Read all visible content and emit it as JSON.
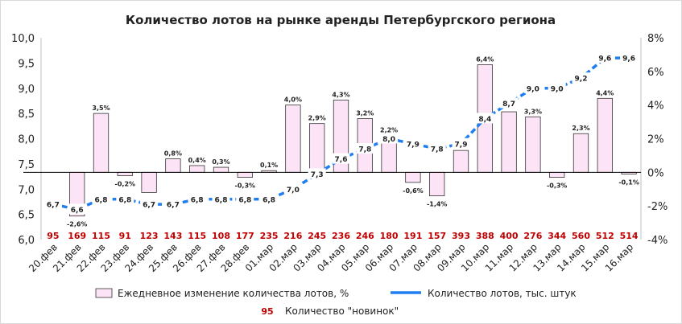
{
  "chart_data": {
    "type": "bar+line",
    "title": "Количество лотов на рынке аренды Петербургского региона",
    "categories": [
      "20.фев",
      "21.фев",
      "22.фев",
      "23.фев",
      "24.фев",
      "25.фев",
      "26.фев",
      "27.фев",
      "28.фев",
      "01.мар",
      "02.мар",
      "03.мар",
      "04.мар",
      "05.мар",
      "06.мар",
      "07.мар",
      "08.мар",
      "09.мар",
      "10.мар",
      "11.мар",
      "12.мар",
      "13.мар",
      "14.мар",
      "15.мар",
      "16.мар"
    ],
    "left_axis": {
      "ylim": [
        6.0,
        10.0
      ],
      "ticks": [
        "6,0",
        "6,5",
        "7,0",
        "7,5",
        "8,0",
        "8,5",
        "9,0",
        "9,5",
        "10,0"
      ]
    },
    "right_axis": {
      "ylim": [
        -4,
        8
      ],
      "ticks": [
        "-4%",
        "-2%",
        "0%",
        "2%",
        "4%",
        "6%",
        "8%"
      ]
    },
    "series": [
      {
        "name": "Ежедневное изменение количества лотов, %",
        "type": "bar",
        "axis": "right",
        "color": "#fce4f6",
        "values": [
          null,
          -2.6,
          3.5,
          -0.2,
          -1.2,
          0.8,
          0.4,
          0.3,
          -0.3,
          0.1,
          4.0,
          2.9,
          4.3,
          3.2,
          2.2,
          -0.6,
          -1.4,
          1.3,
          6.4,
          3.6,
          3.3,
          -0.3,
          2.3,
          4.4,
          -0.1
        ],
        "labels": [
          "",
          "-2,6%",
          "3,5%",
          "-0,2%",
          "",
          "0,8%",
          "0,4%",
          "0,3%",
          "-0,3%",
          "0,1%",
          "4,0%",
          "2,9%",
          "4,3%",
          "3,2%",
          "2,2%",
          "-0,6%",
          "-1,4%",
          "",
          "6,4%",
          "",
          "3,3%",
          "-0,3%",
          "2,3%",
          "4,4%",
          "-0,1%"
        ]
      },
      {
        "name": "Количество лотов, тыс. штук",
        "type": "line",
        "axis": "left",
        "color": "#1f7ef0",
        "values": [
          6.7,
          6.6,
          6.8,
          6.8,
          6.7,
          6.7,
          6.8,
          6.8,
          6.8,
          6.8,
          7.0,
          7.3,
          7.6,
          7.8,
          8.0,
          7.9,
          7.8,
          7.9,
          8.4,
          8.7,
          9.0,
          9.0,
          9.2,
          9.6,
          9.6
        ],
        "labels": [
          "6,7",
          "6,6",
          "6,8",
          "6,8",
          "6,7",
          "6,7",
          "6,8",
          "6,8",
          "6,8",
          "6,8",
          "7,0",
          "7,3",
          "7,6",
          "7,8",
          "8,0",
          "7,9",
          "7,8",
          "7,9",
          "8,4",
          "8,7",
          "9,0",
          "9,0",
          "9,2",
          "9,6",
          "9,6"
        ]
      },
      {
        "name": "Количество \"новинок\"",
        "type": "text-row",
        "color": "#c00000",
        "values": [
          95,
          169,
          115,
          91,
          123,
          143,
          115,
          108,
          177,
          235,
          216,
          245,
          236,
          246,
          180,
          191,
          157,
          393,
          388,
          400,
          276,
          344,
          560,
          512,
          514
        ]
      }
    ],
    "legend": {
      "bar_label": "Ежедневное изменение количества лотов, %",
      "line_label": "Количество лотов, тыс. штук",
      "new_sample": "95",
      "new_label": "Количество \"новинок\""
    }
  }
}
